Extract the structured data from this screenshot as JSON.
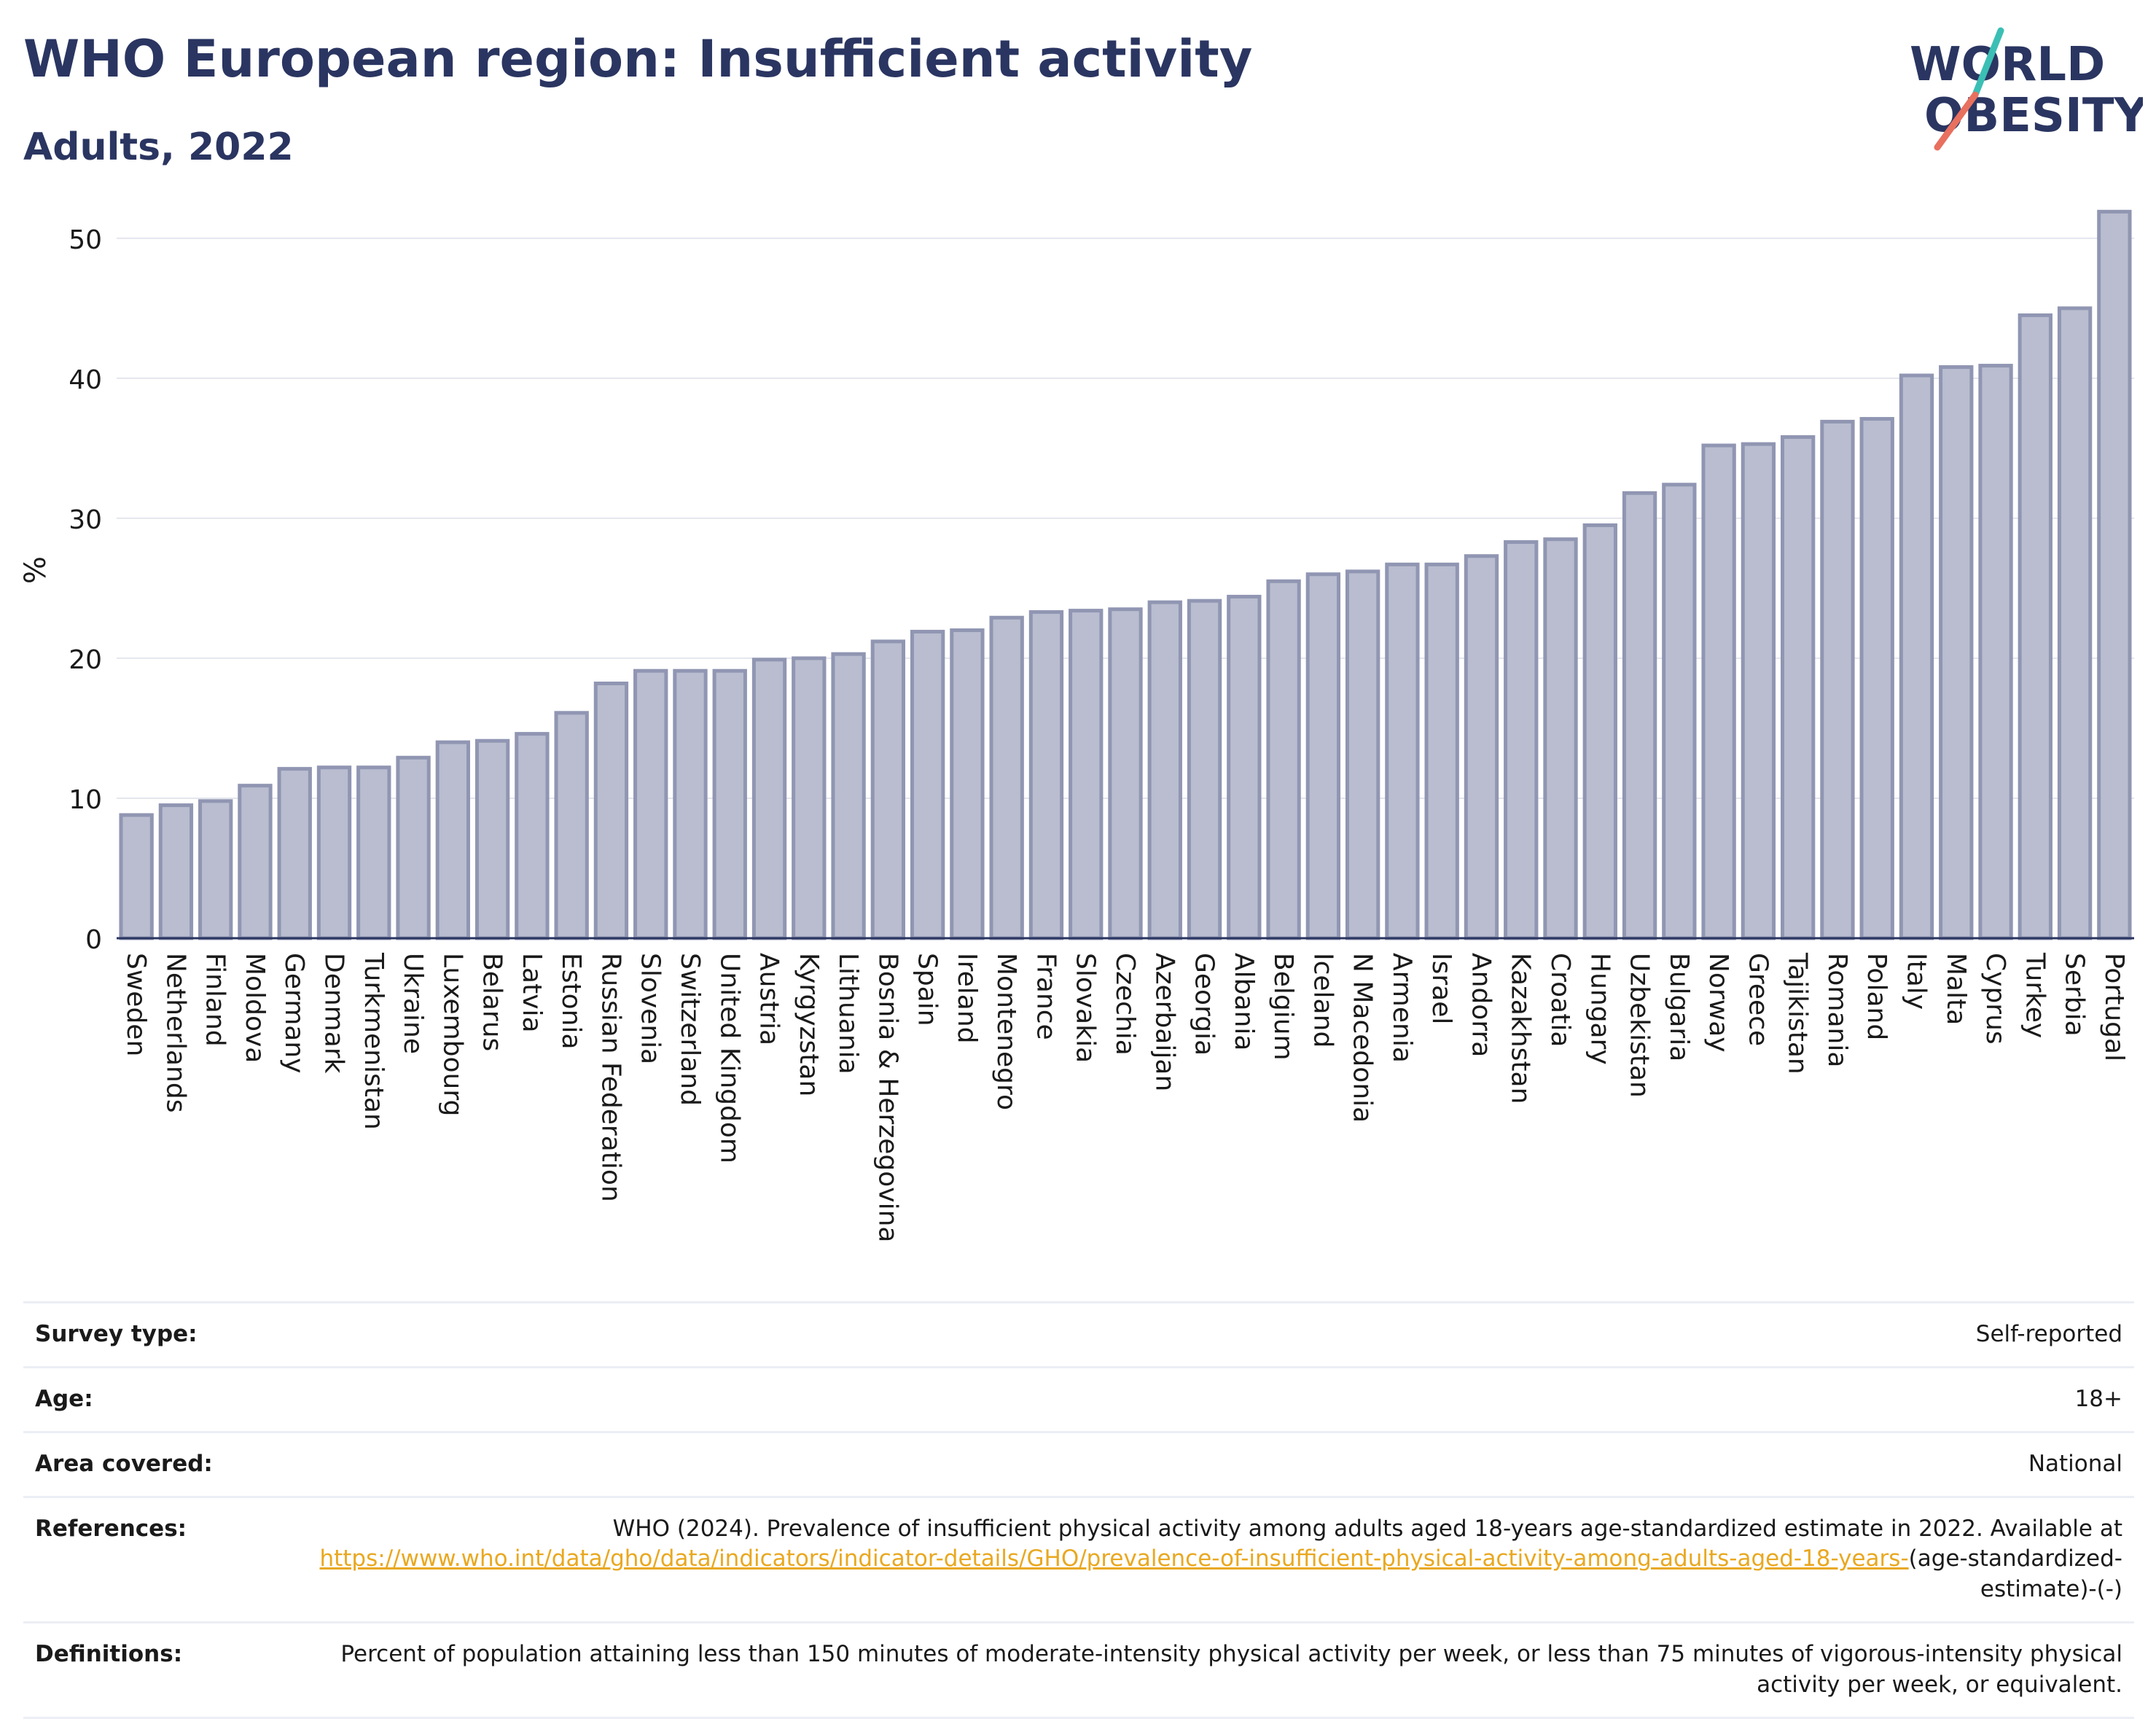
{
  "header": {
    "title": "WHO European region: Insufficient activity",
    "subtitle": "Adults, 2022"
  },
  "logo": {
    "line1": "WORLD",
    "line2": "OBESITY",
    "text_color": "#2a3561",
    "accent_teal": "#3bbfb5",
    "accent_coral": "#e8705f"
  },
  "chart_data": {
    "type": "bar",
    "ylabel": "%",
    "xlabel": "",
    "ylim": [
      0,
      54
    ],
    "yticks": [
      0,
      10,
      20,
      30,
      40,
      50
    ],
    "grid": true,
    "bar_fill": "#b9bdcf",
    "bar_stroke": "#9096b2",
    "categories": [
      "Sweden",
      "Netherlands",
      "Finland",
      "Moldova",
      "Germany",
      "Denmark",
      "Turkmenistan",
      "Ukraine",
      "Luxembourg",
      "Belarus",
      "Latvia",
      "Estonia",
      "Russian Federation",
      "Slovenia",
      "Switzerland",
      "United Kingdom",
      "Austria",
      "Kyrgyzstan",
      "Lithuania",
      "Bosnia & Herzegovina",
      "Spain",
      "Ireland",
      "Montenegro",
      "France",
      "Slovakia",
      "Czechia",
      "Azerbaijan",
      "Georgia",
      "Albania",
      "Belgium",
      "Iceland",
      "N Macedonia",
      "Armenia",
      "Israel",
      "Andorra",
      "Kazakhstan",
      "Croatia",
      "Hungary",
      "Uzbekistan",
      "Bulgaria",
      "Norway",
      "Greece",
      "Tajikistan",
      "Romania",
      "Poland",
      "Italy",
      "Malta",
      "Cyprus",
      "Turkey",
      "Serbia",
      "Portugal"
    ],
    "values": [
      8.8,
      9.5,
      9.8,
      10.9,
      12.1,
      12.2,
      12.2,
      12.9,
      14.0,
      14.1,
      14.6,
      16.1,
      18.2,
      19.1,
      19.1,
      19.1,
      19.9,
      20.0,
      20.3,
      21.2,
      21.9,
      22.0,
      22.9,
      23.3,
      23.4,
      23.5,
      24.0,
      24.1,
      24.4,
      25.5,
      26.0,
      26.2,
      26.7,
      26.7,
      27.3,
      28.3,
      28.5,
      29.5,
      31.8,
      32.4,
      35.2,
      35.3,
      35.8,
      36.9,
      37.1,
      40.2,
      40.8,
      40.9,
      44.5,
      45.0,
      51.9
    ]
  },
  "meta": [
    {
      "key": "Survey type:",
      "value": "Self-reported"
    },
    {
      "key": "Age:",
      "value": "18+"
    },
    {
      "key": "Area covered:",
      "value": "National"
    },
    {
      "key": "References:",
      "value_prefix": "WHO (2024). Prevalence of insufficient physical activity among adults aged 18-years age-standardized estimate in 2022. Available at",
      "link": "https://www.who.int/data/gho/data/indicators/indicator-details/GHO/prevalence-of-insufficient-physical-activity-among-adults-aged-18-years-",
      "value_suffix": "(age-standardized-estimate)-(-)"
    },
    {
      "key": "Definitions:",
      "value": "Percent of population attaining less than 150 minutes of moderate-intensity physical activity per week, or less than 75 minutes of vigorous-intensity physical activity per week, or equivalent."
    }
  ]
}
